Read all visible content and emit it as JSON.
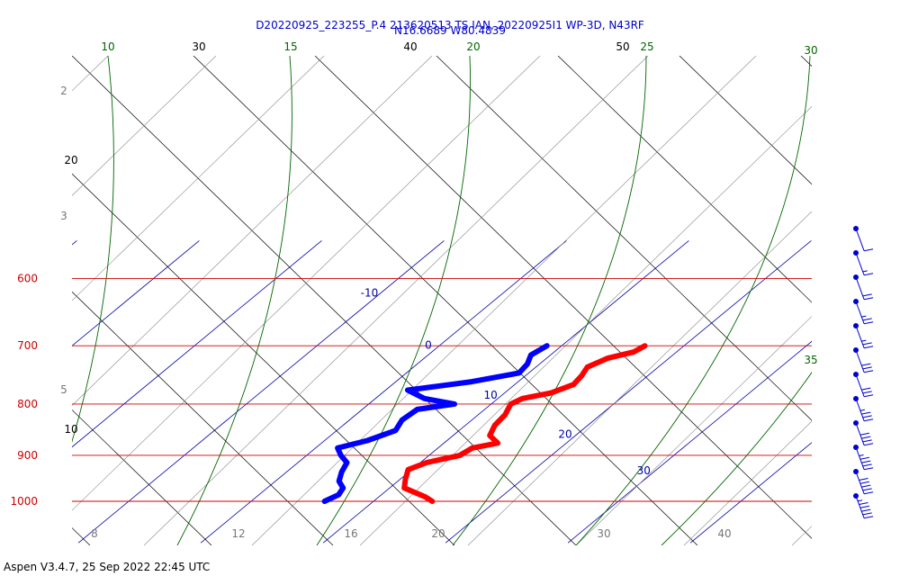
{
  "title_line1": "D20220925_223255_P.4 213620513 TS IAN, 20220925I1 WP-3D, N43RF",
  "title_line2": "N16.6689 W80.4839",
  "footer": "Aspen V3.4.7, 25 Sep 2022  22:45 UTC",
  "colors": {
    "isobar": "#cc0000",
    "isotherm": "#0000aa",
    "mixing_ratio": "#006600",
    "dry_adiabat": "#000000",
    "moist_adiabat": "#888888",
    "temperature": "#ff0000",
    "dewpoint": "#0000ff",
    "wind": "#0000cc"
  },
  "chart_data": {
    "type": "skew-t",
    "pressure_levels": [
      {
        "label": "600",
        "value": 600
      },
      {
        "label": "700",
        "value": 700
      },
      {
        "label": "800",
        "value": 800
      },
      {
        "label": "900",
        "value": 900
      },
      {
        "label": "1000",
        "value": 1000
      }
    ],
    "isotherm_labels": [
      {
        "label": "-10",
        "t": -10,
        "p": 625
      },
      {
        "label": "0",
        "t": 0,
        "p": 705
      },
      {
        "label": "10",
        "t": 10,
        "p": 790
      },
      {
        "label": "20",
        "t": 20,
        "p": 865
      },
      {
        "label": "30",
        "t": 30,
        "p": 940
      }
    ],
    "mixing_ratio_labels": [
      {
        "label": "10",
        "value": 10
      },
      {
        "label": "15",
        "value": 15
      },
      {
        "label": "20",
        "value": 20
      },
      {
        "label": "25",
        "value": 25
      },
      {
        "label": "30",
        "value": 30
      },
      {
        "label": "35",
        "value": 35
      }
    ],
    "dry_adiabat_labels": [
      {
        "label": "30",
        "value": 30
      },
      {
        "label": "40",
        "value": 40
      },
      {
        "label": "50",
        "value": 50
      },
      {
        "label": "20",
        "value": 20
      },
      {
        "label": "10",
        "value": 10
      }
    ],
    "moist_adiabat_labels": [
      {
        "label": "2",
        "value": 2
      },
      {
        "label": "3",
        "value": 3
      },
      {
        "label": "5",
        "value": 5
      }
    ],
    "bottom_labels": [
      {
        "label": "8",
        "value": 8
      },
      {
        "label": "12",
        "value": 12
      },
      {
        "label": "16",
        "value": 16
      },
      {
        "label": "20",
        "value": 20
      },
      {
        "label": "30",
        "value": 30
      },
      {
        "label": "40",
        "value": 40
      }
    ],
    "temperature": [
      {
        "p": 700,
        "t": 16.8
      },
      {
        "p": 710,
        "t": 16.5
      },
      {
        "p": 720,
        "t": 15.0
      },
      {
        "p": 735,
        "t": 14.2
      },
      {
        "p": 750,
        "t": 14.6
      },
      {
        "p": 765,
        "t": 14.8
      },
      {
        "p": 780,
        "t": 13.8
      },
      {
        "p": 790,
        "t": 12.0
      },
      {
        "p": 800,
        "t": 11.6
      },
      {
        "p": 820,
        "t": 12.2
      },
      {
        "p": 840,
        "t": 12.4
      },
      {
        "p": 860,
        "t": 13.0
      },
      {
        "p": 875,
        "t": 14.4
      },
      {
        "p": 885,
        "t": 12.8
      },
      {
        "p": 900,
        "t": 12.5
      },
      {
        "p": 915,
        "t": 10.5
      },
      {
        "p": 930,
        "t": 9.7
      },
      {
        "p": 950,
        "t": 10.4
      },
      {
        "p": 970,
        "t": 11.2
      },
      {
        "p": 990,
        "t": 13.8
      },
      {
        "p": 1000,
        "t": 14.8
      }
    ],
    "dewpoint": [
      {
        "p": 700,
        "t": 8.8
      },
      {
        "p": 715,
        "t": 8.4
      },
      {
        "p": 730,
        "t": 9.0
      },
      {
        "p": 745,
        "t": 9.2
      },
      {
        "p": 760,
        "t": 6.2
      },
      {
        "p": 775,
        "t": 1.8
      },
      {
        "p": 790,
        "t": 4.0
      },
      {
        "p": 800,
        "t": 7.0
      },
      {
        "p": 810,
        "t": 4.5
      },
      {
        "p": 830,
        "t": 4.3
      },
      {
        "p": 850,
        "t": 4.8
      },
      {
        "p": 870,
        "t": 3.5
      },
      {
        "p": 885,
        "t": 1.8
      },
      {
        "p": 900,
        "t": 2.8
      },
      {
        "p": 915,
        "t": 4.0
      },
      {
        "p": 935,
        "t": 4.5
      },
      {
        "p": 955,
        "t": 5.2
      },
      {
        "p": 970,
        "t": 6.2
      },
      {
        "p": 985,
        "t": 6.5
      },
      {
        "p": 1000,
        "t": 6.0
      }
    ],
    "wind_levels": [
      {
        "p": 710,
        "speed": 10,
        "dir": 300
      },
      {
        "p": 730,
        "speed": 15,
        "dir": 290
      },
      {
        "p": 750,
        "speed": 20,
        "dir": 280
      },
      {
        "p": 770,
        "speed": 25,
        "dir": 270
      },
      {
        "p": 790,
        "speed": 25,
        "dir": 260
      },
      {
        "p": 810,
        "speed": 30,
        "dir": 255
      },
      {
        "p": 830,
        "speed": 30,
        "dir": 250
      },
      {
        "p": 850,
        "speed": 35,
        "dir": 245
      },
      {
        "p": 875,
        "speed": 40,
        "dir": 240
      },
      {
        "p": 900,
        "speed": 45,
        "dir": 235
      },
      {
        "p": 925,
        "speed": 50,
        "dir": 230
      },
      {
        "p": 950,
        "speed": 55,
        "dir": 225
      }
    ]
  }
}
